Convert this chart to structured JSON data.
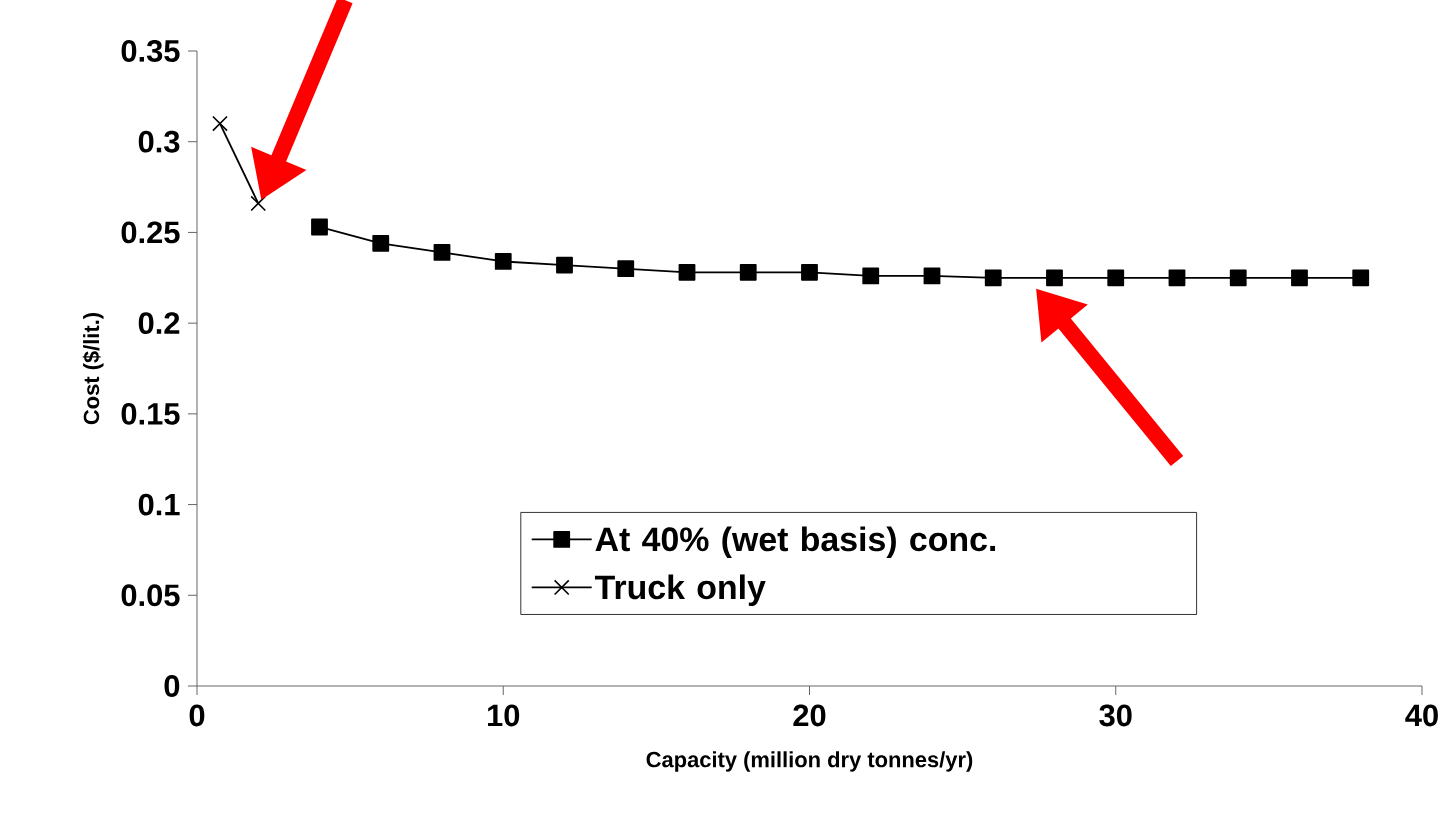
{
  "chart_data": {
    "type": "line",
    "xlabel": "Capacity (million dry tonnes/yr)",
    "ylabel": "Cost ($/lit.)",
    "xlim": [
      0,
      40
    ],
    "xticks": [
      0,
      10,
      20,
      30,
      40
    ],
    "ylim": [
      0,
      0.35
    ],
    "yticks": [
      0,
      0.05,
      0.1,
      0.15,
      0.2,
      0.25,
      0.3,
      0.35
    ],
    "grid": false,
    "legend": "bottom right",
    "series": [
      {
        "name": "At 40% (wet basis) conc.",
        "color": "#000000",
        "marker": "square",
        "x": [
          4,
          6,
          8,
          10,
          12,
          14,
          16,
          18,
          20,
          22,
          24,
          26,
          28,
          30,
          32,
          34,
          36,
          38
        ],
        "values": [
          0.253,
          0.244,
          0.239,
          0.234,
          0.232,
          0.23,
          0.228,
          0.228,
          0.228,
          0.226,
          0.226,
          0.225,
          0.225,
          0.225,
          0.225,
          0.225,
          0.225,
          0.225
        ]
      },
      {
        "name": "Truck only",
        "color": "#000000",
        "marker": "cross",
        "x": [
          0.75,
          2
        ],
        "values": [
          0.31,
          0.266
        ]
      }
    ]
  }
}
